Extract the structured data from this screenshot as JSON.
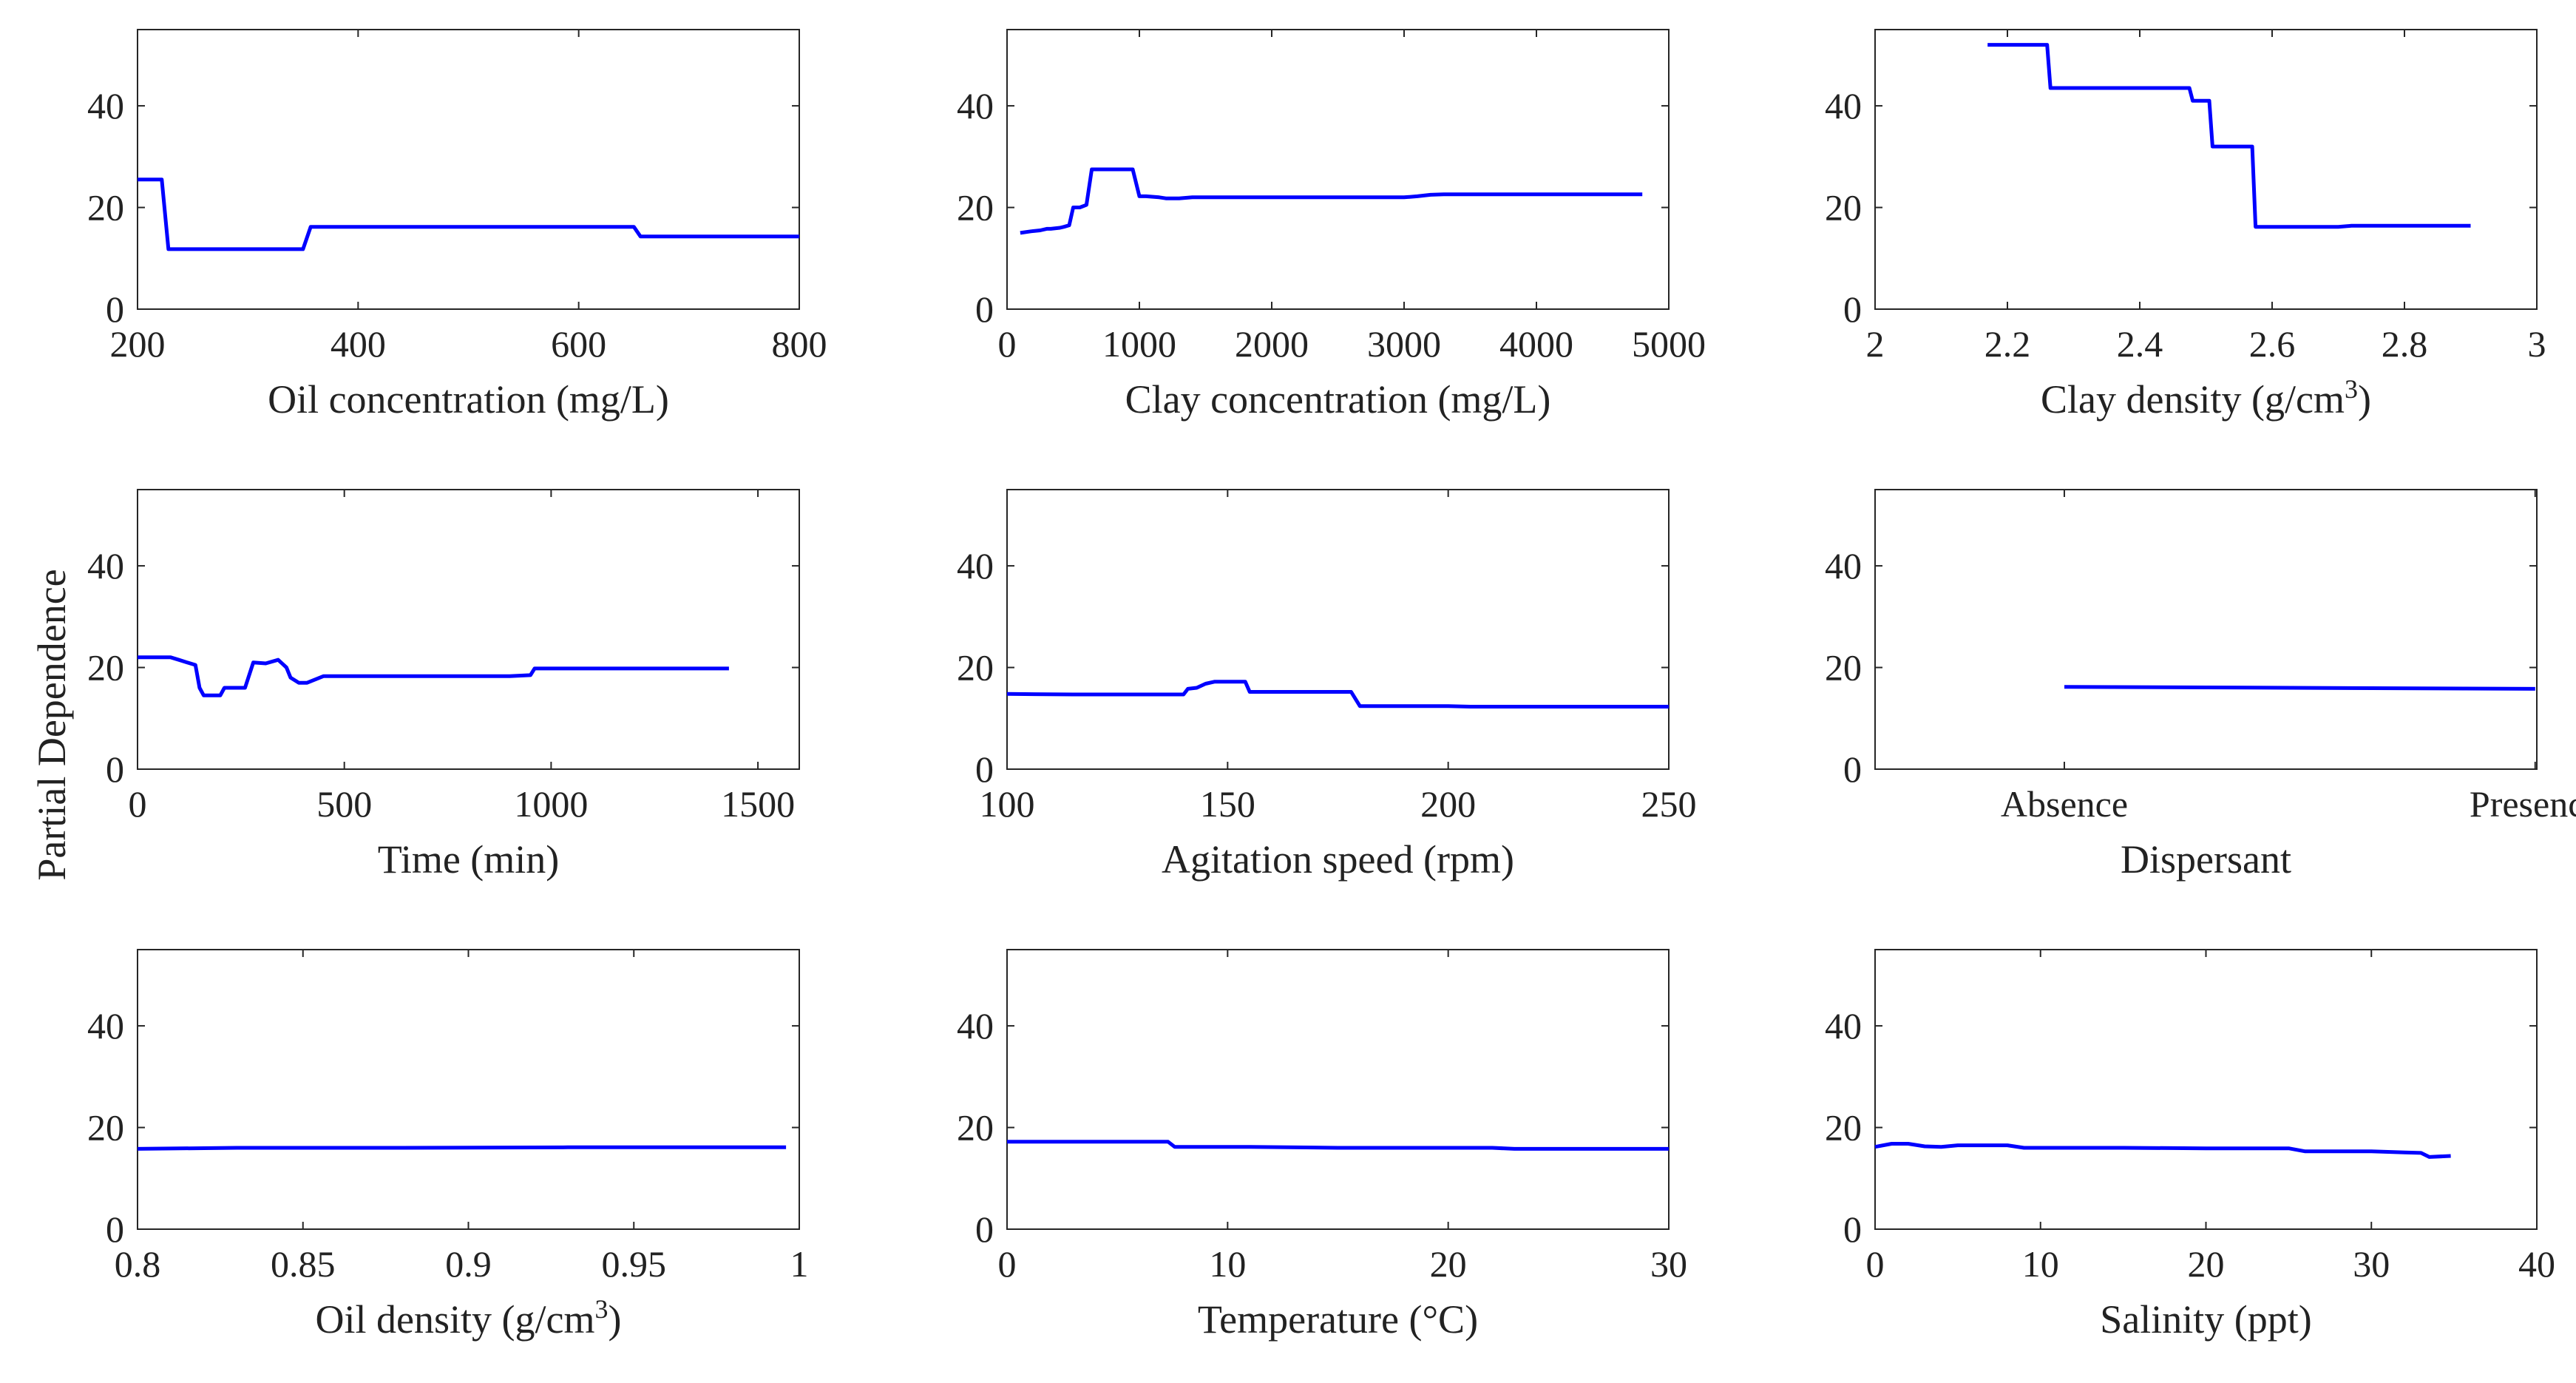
{
  "figure": {
    "ylabel": "Partial Dependence"
  },
  "chart_data": [
    {
      "type": "line",
      "xlabel": "Oil concentration (mg/L)",
      "xlim": [
        200,
        800
      ],
      "xticks": [
        200,
        400,
        600,
        800
      ],
      "xtick_labels": [
        "200",
        "400",
        "600",
        "800"
      ],
      "ylim": [
        0,
        55
      ],
      "yticks": [
        0,
        20,
        40
      ],
      "series": [
        {
          "name": "Oil concentration",
          "color": "#0000ff",
          "x": [
            200,
            222,
            228,
            300,
            350,
            357,
            450,
            550,
            650,
            656,
            800
          ],
          "y": [
            25.5,
            25.5,
            11.8,
            11.8,
            11.8,
            16.2,
            16.2,
            16.2,
            16.2,
            14.3,
            14.3
          ]
        }
      ]
    },
    {
      "type": "line",
      "xlabel": "Clay concentration (mg/L)",
      "xlim": [
        0,
        5000
      ],
      "xticks": [
        0,
        1000,
        2000,
        3000,
        4000,
        5000
      ],
      "xtick_labels": [
        "0",
        "1000",
        "2000",
        "3000",
        "4000",
        "5000"
      ],
      "ylim": [
        0,
        55
      ],
      "yticks": [
        0,
        20,
        40
      ],
      "series": [
        {
          "name": "Clay concentration",
          "color": "#0000ff",
          "x": [
            100,
            180,
            250,
            300,
            330,
            400,
            430,
            470,
            500,
            550,
            600,
            640,
            700,
            850,
            950,
            1000,
            1050,
            1150,
            1200,
            1300,
            1400,
            1500,
            2000,
            2500,
            3000,
            3100,
            3200,
            3300,
            4000,
            4800
          ],
          "y": [
            15.0,
            15.3,
            15.5,
            15.8,
            15.8,
            16.0,
            16.2,
            16.5,
            20.0,
            20.0,
            20.5,
            27.5,
            27.5,
            27.5,
            27.5,
            22.2,
            22.2,
            22.0,
            21.8,
            21.8,
            22.0,
            22.0,
            22.0,
            22.0,
            22.0,
            22.2,
            22.5,
            22.6,
            22.6,
            22.6
          ]
        }
      ]
    },
    {
      "type": "line",
      "xlabel": "Clay density (g/cm",
      "xlabel_sup": "3",
      "xlabel_tail": ")",
      "xlim": [
        2,
        3
      ],
      "xticks": [
        2,
        2.2,
        2.4,
        2.6,
        2.8,
        3
      ],
      "xtick_labels": [
        "2",
        "2.2",
        "2.4",
        "2.6",
        "2.8",
        "3"
      ],
      "ylim": [
        0,
        55
      ],
      "yticks": [
        0,
        20,
        40
      ],
      "series": [
        {
          "name": "Clay density",
          "color": "#0000ff",
          "x": [
            2.17,
            2.26,
            2.265,
            2.4,
            2.475,
            2.48,
            2.49,
            2.505,
            2.51,
            2.57,
            2.575,
            2.7,
            2.72,
            2.9
          ],
          "y": [
            52,
            52,
            43.5,
            43.5,
            43.5,
            41,
            41,
            41,
            32,
            32,
            16.2,
            16.2,
            16.4,
            16.4
          ]
        }
      ]
    },
    {
      "type": "line",
      "xlabel": "Time (min)",
      "xlim": [
        0,
        1600
      ],
      "xticks": [
        0,
        500,
        1000,
        1500
      ],
      "xtick_labels": [
        "0",
        "500",
        "1000",
        "1500"
      ],
      "ylim": [
        0,
        55
      ],
      "yticks": [
        0,
        20,
        40
      ],
      "series": [
        {
          "name": "Time",
          "color": "#0000ff",
          "x": [
            0,
            80,
            100,
            120,
            140,
            150,
            160,
            200,
            210,
            260,
            280,
            310,
            340,
            360,
            370,
            390,
            410,
            450,
            500,
            900,
            950,
            960,
            1000,
            1200,
            1430
          ],
          "y": [
            22,
            22,
            21.5,
            21,
            20.5,
            16,
            14.5,
            14.5,
            16,
            16,
            21,
            20.8,
            21.5,
            20,
            18,
            17,
            17,
            18.3,
            18.3,
            18.3,
            18.5,
            19.8,
            19.8,
            19.8,
            19.8
          ]
        }
      ]
    },
    {
      "type": "line",
      "xlabel": "Agitation speed (rpm)",
      "xlim": [
        100,
        250
      ],
      "xticks": [
        100,
        150,
        200,
        250
      ],
      "xtick_labels": [
        "100",
        "150",
        "200",
        "250"
      ],
      "ylim": [
        0,
        55
      ],
      "yticks": [
        0,
        20,
        40
      ],
      "series": [
        {
          "name": "Agitation speed",
          "color": "#0000ff",
          "x": [
            100,
            115,
            130,
            140,
            141,
            143,
            145,
            147,
            154,
            155,
            165,
            178,
            180,
            200,
            205,
            250
          ],
          "y": [
            14.8,
            14.7,
            14.7,
            14.7,
            15.8,
            16.0,
            16.8,
            17.2,
            17.2,
            15.2,
            15.2,
            15.2,
            12.4,
            12.4,
            12.3,
            12.3
          ]
        }
      ]
    },
    {
      "type": "line",
      "xlabel": "Dispersant",
      "categorical_x": true,
      "categories": [
        "Absence",
        "Presence"
      ],
      "ylim": [
        0,
        55
      ],
      "yticks": [
        0,
        20,
        40
      ],
      "series": [
        {
          "name": "Dispersant",
          "color": "#0000ff",
          "x": [
            0,
            1
          ],
          "y": [
            16.2,
            15.8
          ]
        }
      ]
    },
    {
      "type": "line",
      "xlabel": "Oil density (g/cm",
      "xlabel_sup": "3",
      "xlabel_tail": ")",
      "xlim": [
        0.8,
        1
      ],
      "xticks": [
        0.8,
        0.85,
        0.9,
        0.95,
        1
      ],
      "xtick_labels": [
        "0.8",
        "0.85",
        "0.9",
        "0.95",
        "1"
      ],
      "ylim": [
        0,
        55
      ],
      "yticks": [
        0,
        20,
        40
      ],
      "series": [
        {
          "name": "Oil density",
          "color": "#0000ff",
          "x": [
            0.8,
            0.83,
            0.88,
            0.93,
            0.996
          ],
          "y": [
            15.8,
            16.0,
            16.0,
            16.1,
            16.1
          ]
        }
      ]
    },
    {
      "type": "line",
      "xlabel": "Temperature (°C)",
      "xlim": [
        0,
        30
      ],
      "xticks": [
        0,
        10,
        20,
        30
      ],
      "xtick_labels": [
        "0",
        "10",
        "20",
        "30"
      ],
      "ylim": [
        0,
        55
      ],
      "yticks": [
        0,
        20,
        40
      ],
      "series": [
        {
          "name": "Temperature",
          "color": "#0000ff",
          "x": [
            0,
            7.3,
            7.6,
            11,
            15,
            22,
            23,
            30
          ],
          "y": [
            17.2,
            17.2,
            16.2,
            16.2,
            16.0,
            16.0,
            15.8,
            15.8
          ]
        }
      ]
    },
    {
      "type": "line",
      "xlabel": "Salinity (ppt)",
      "xlim": [
        0,
        40
      ],
      "xticks": [
        0,
        10,
        20,
        30,
        40
      ],
      "xtick_labels": [
        "0",
        "10",
        "20",
        "30",
        "40"
      ],
      "ylim": [
        0,
        55
      ],
      "yticks": [
        0,
        20,
        40
      ],
      "series": [
        {
          "name": "Salinity",
          "color": "#0000ff",
          "x": [
            0,
            1,
            2,
            3,
            4,
            5,
            8,
            9,
            15,
            20,
            25,
            26,
            30,
            32,
            33,
            33.5,
            34.8
          ],
          "y": [
            16.2,
            16.8,
            16.8,
            16.3,
            16.2,
            16.5,
            16.5,
            16.0,
            16.0,
            15.9,
            15.9,
            15.3,
            15.3,
            15.1,
            15.0,
            14.2,
            14.4
          ]
        }
      ]
    }
  ]
}
